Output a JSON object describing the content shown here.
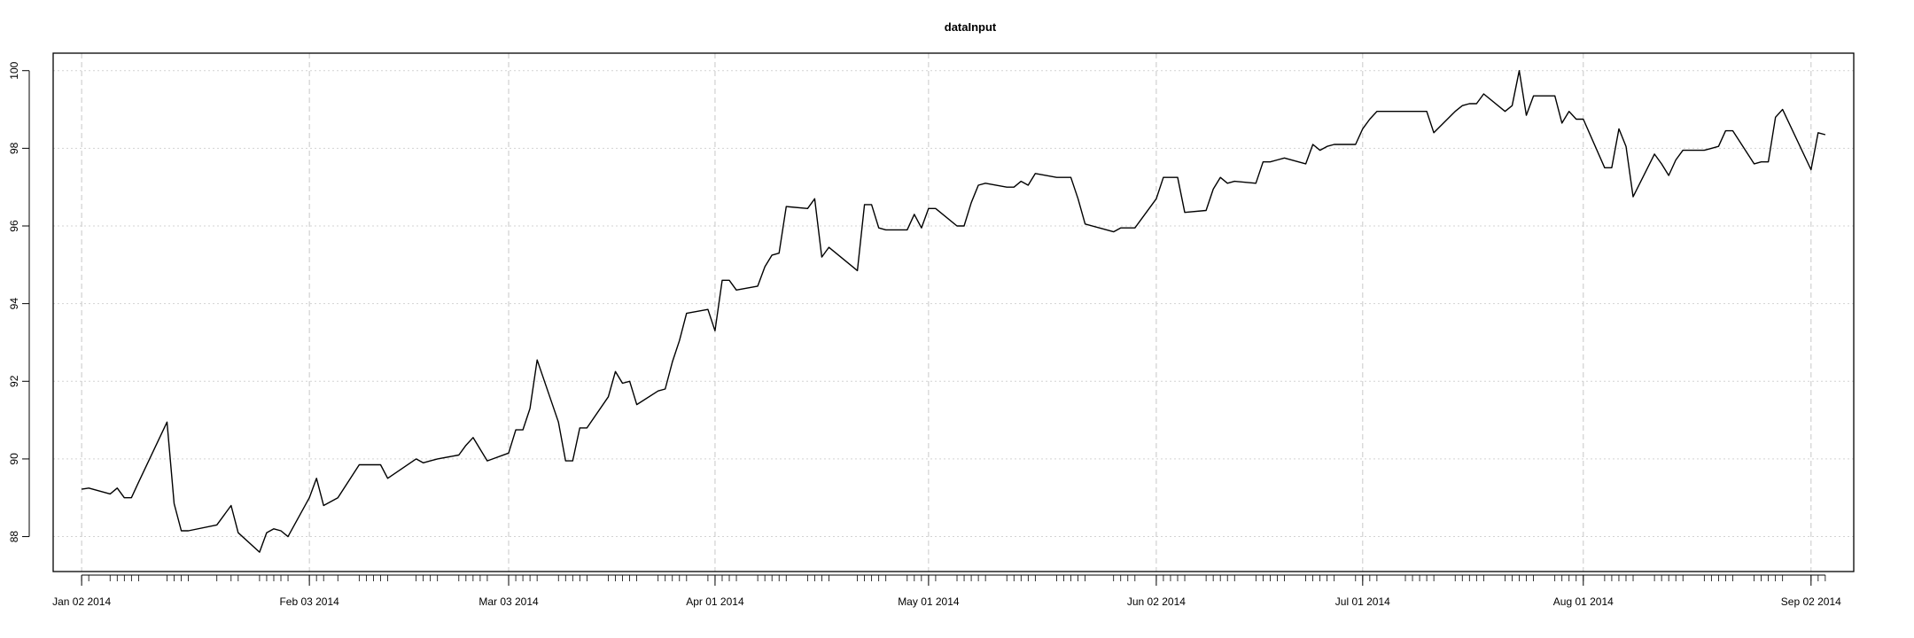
{
  "chart_data": {
    "type": "line",
    "title": "dataInput",
    "xlabel": "",
    "ylabel": "",
    "xlim": [
      "2013-12-29",
      "2014-09-08"
    ],
    "ylim": [
      87.1,
      100.45
    ],
    "grid": true,
    "x_ticks": [
      {
        "date": "2014-01-02",
        "label": "Jan 02 2014"
      },
      {
        "date": "2014-02-03",
        "label": "Feb 03 2014"
      },
      {
        "date": "2014-03-03",
        "label": "Mar 03 2014"
      },
      {
        "date": "2014-04-01",
        "label": "Apr 01 2014"
      },
      {
        "date": "2014-05-01",
        "label": "May 01 2014"
      },
      {
        "date": "2014-06-02",
        "label": "Jun 02 2014"
      },
      {
        "date": "2014-07-01",
        "label": "Jul 01 2014"
      },
      {
        "date": "2014-08-01",
        "label": "Aug 01 2014"
      },
      {
        "date": "2014-09-02",
        "label": "Sep 02 2014"
      }
    ],
    "y_ticks": [
      88,
      90,
      92,
      94,
      96,
      98,
      100
    ],
    "series": [
      {
        "x": [
          "2014-01-02",
          "2014-01-03",
          "2014-01-06",
          "2014-01-07",
          "2014-01-08",
          "2014-01-09",
          "2014-01-10",
          "2014-01-14",
          "2014-01-15",
          "2014-01-16",
          "2014-01-17",
          "2014-01-21",
          "2014-01-23",
          "2014-01-24",
          "2014-01-27",
          "2014-01-28",
          "2014-01-29",
          "2014-01-30",
          "2014-01-31",
          "2014-02-03",
          "2014-02-04",
          "2014-02-05",
          "2014-02-07",
          "2014-02-10",
          "2014-02-11",
          "2014-02-12",
          "2014-02-13",
          "2014-02-14",
          "2014-02-18",
          "2014-02-19",
          "2014-02-20",
          "2014-02-21",
          "2014-02-24",
          "2014-02-25",
          "2014-02-26",
          "2014-02-27",
          "2014-02-28",
          "2014-03-03",
          "2014-03-04",
          "2014-03-05",
          "2014-03-06",
          "2014-03-07",
          "2014-03-10",
          "2014-03-11",
          "2014-03-12",
          "2014-03-13",
          "2014-03-14",
          "2014-03-17",
          "2014-03-18",
          "2014-03-19",
          "2014-03-20",
          "2014-03-21",
          "2014-03-24",
          "2014-03-25",
          "2014-03-26",
          "2014-03-27",
          "2014-03-28",
          "2014-03-31",
          "2014-04-01",
          "2014-04-02",
          "2014-04-03",
          "2014-04-04",
          "2014-04-07",
          "2014-04-08",
          "2014-04-09",
          "2014-04-10",
          "2014-04-11",
          "2014-04-14",
          "2014-04-15",
          "2014-04-16",
          "2014-04-17",
          "2014-04-21",
          "2014-04-22",
          "2014-04-23",
          "2014-04-24",
          "2014-04-25",
          "2014-04-28",
          "2014-04-29",
          "2014-04-30",
          "2014-05-01",
          "2014-05-02",
          "2014-05-05",
          "2014-05-06",
          "2014-05-07",
          "2014-05-08",
          "2014-05-09",
          "2014-05-12",
          "2014-05-13",
          "2014-05-14",
          "2014-05-15",
          "2014-05-16",
          "2014-05-19",
          "2014-05-20",
          "2014-05-21",
          "2014-05-22",
          "2014-05-23",
          "2014-05-27",
          "2014-05-28",
          "2014-05-29",
          "2014-05-30",
          "2014-06-02",
          "2014-06-03",
          "2014-06-04",
          "2014-06-05",
          "2014-06-06",
          "2014-06-09",
          "2014-06-10",
          "2014-06-11",
          "2014-06-12",
          "2014-06-13",
          "2014-06-16",
          "2014-06-17",
          "2014-06-18",
          "2014-06-19",
          "2014-06-20",
          "2014-06-23",
          "2014-06-24",
          "2014-06-25",
          "2014-06-26",
          "2014-06-27",
          "2014-06-30",
          "2014-07-01",
          "2014-07-02",
          "2014-07-03",
          "2014-07-07",
          "2014-07-08",
          "2014-07-09",
          "2014-07-10",
          "2014-07-11",
          "2014-07-14",
          "2014-07-15",
          "2014-07-16",
          "2014-07-17",
          "2014-07-18",
          "2014-07-21",
          "2014-07-22",
          "2014-07-23",
          "2014-07-24",
          "2014-07-25",
          "2014-07-28",
          "2014-07-29",
          "2014-07-30",
          "2014-07-31",
          "2014-08-01",
          "2014-08-04",
          "2014-08-05",
          "2014-08-06",
          "2014-08-07",
          "2014-08-08",
          "2014-08-11",
          "2014-08-12",
          "2014-08-13",
          "2014-08-14",
          "2014-08-15",
          "2014-08-18",
          "2014-08-19",
          "2014-08-20",
          "2014-08-21",
          "2014-08-22",
          "2014-08-25",
          "2014-08-26",
          "2014-08-27",
          "2014-08-28",
          "2014-08-29",
          "2014-09-02",
          "2014-09-03",
          "2014-09-04"
        ],
        "values": [
          89.22,
          89.25,
          89.1,
          89.25,
          89.0,
          89.0,
          89.4,
          90.95,
          88.85,
          88.15,
          88.15,
          88.3,
          88.8,
          88.1,
          87.6,
          88.1,
          88.2,
          88.15,
          88.0,
          89.0,
          89.5,
          88.8,
          89.0,
          89.85,
          89.85,
          89.85,
          89.85,
          89.5,
          90.0,
          89.9,
          89.95,
          90.0,
          90.1,
          90.35,
          90.55,
          90.25,
          89.95,
          90.15,
          90.75,
          90.75,
          91.3,
          92.55,
          90.95,
          89.95,
          89.95,
          90.8,
          90.8,
          91.6,
          92.25,
          91.95,
          92.0,
          91.4,
          91.75,
          91.8,
          92.5,
          93.05,
          93.75,
          93.85,
          93.3,
          94.6,
          94.6,
          94.35,
          94.45,
          94.95,
          95.25,
          95.3,
          96.5,
          96.45,
          96.7,
          95.2,
          95.45,
          94.85,
          96.55,
          96.55,
          95.95,
          95.9,
          95.9,
          96.3,
          95.95,
          96.45,
          96.45,
          96.0,
          96.0,
          96.6,
          97.05,
          97.1,
          97.0,
          97.0,
          97.15,
          97.05,
          97.35,
          97.25,
          97.25,
          97.25,
          96.7,
          96.05,
          95.85,
          95.95,
          95.95,
          95.95,
          96.7,
          97.25,
          97.25,
          97.25,
          96.35,
          96.4,
          96.95,
          97.25,
          97.1,
          97.15,
          97.1,
          97.65,
          97.65,
          97.7,
          97.75,
          97.6,
          98.1,
          97.95,
          98.05,
          98.1,
          98.1,
          98.5,
          98.75,
          98.95,
          98.95,
          98.95,
          98.95,
          98.95,
          98.4,
          98.95,
          99.1,
          99.15,
          99.15,
          99.4,
          98.95,
          99.1,
          100.0,
          98.85,
          99.35,
          99.35,
          98.65,
          98.95,
          98.75,
          98.75,
          97.5,
          97.5,
          98.5,
          98.05,
          96.75,
          97.85,
          97.6,
          97.3,
          97.7,
          97.95,
          97.95,
          98.0,
          98.05,
          98.45,
          98.45,
          97.6,
          97.65,
          97.65,
          98.8,
          99.0,
          97.45,
          98.4,
          98.35
        ]
      }
    ]
  }
}
